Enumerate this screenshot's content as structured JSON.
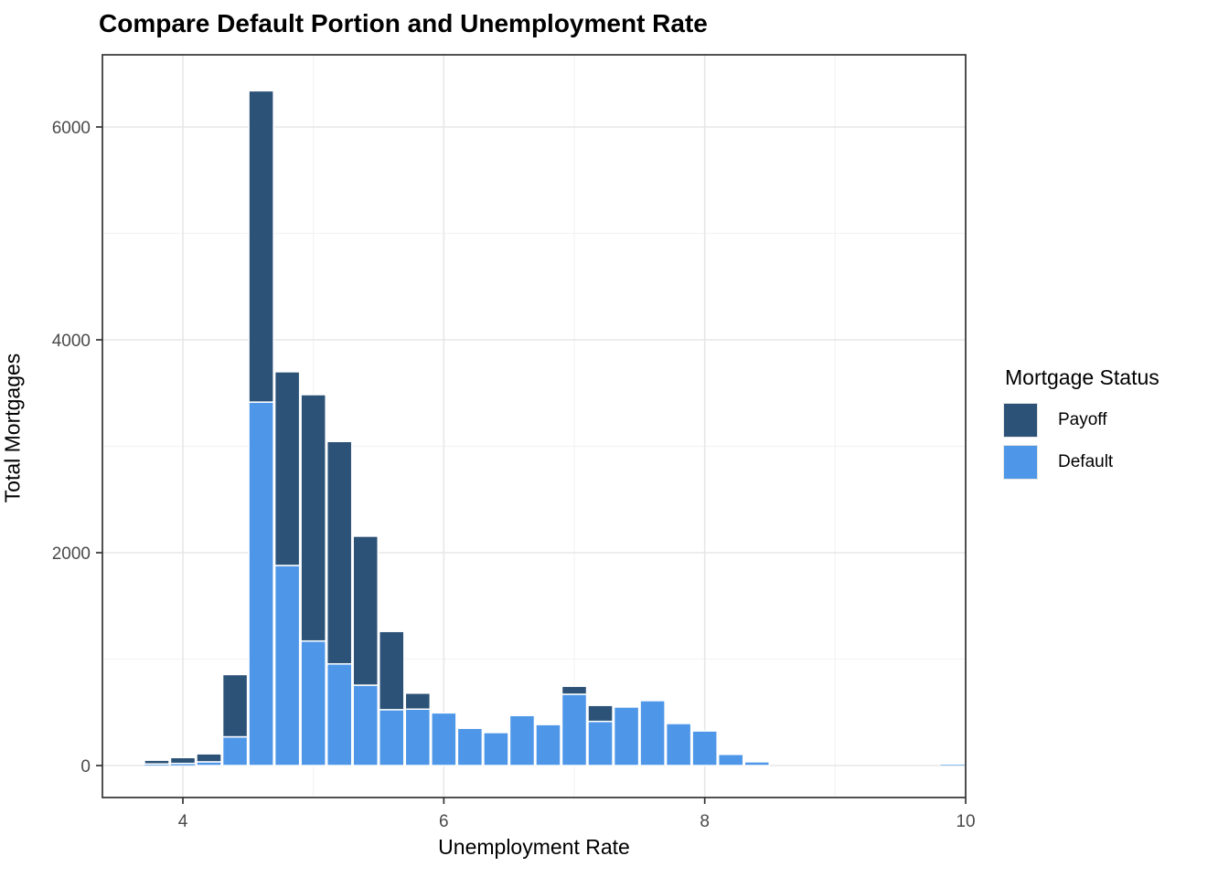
{
  "page": {
    "title": "Compare Default Portion and Unemployment Rate"
  },
  "chart_data": {
    "type": "bar",
    "subtype": "stacked-histogram",
    "title": "Compare Default Portion and Unemployment Rate",
    "xlabel": "Unemployment Rate",
    "ylabel": "Total Mortgages",
    "legend": {
      "title": "Mortgage Status",
      "position": "right"
    },
    "grid": "on",
    "bin_width": 0.2,
    "xlim": [
      3.38,
      10.0
    ],
    "ylim": [
      0,
      6680
    ],
    "x_ticks": [
      4,
      6,
      8,
      10
    ],
    "x_tick_labels": [
      "4",
      "6",
      "8",
      "10"
    ],
    "x_minor_ticks": [
      5,
      7,
      9
    ],
    "y_ticks": [
      0,
      2000,
      4000,
      6000
    ],
    "y_tick_labels": [
      "0",
      "2000",
      "4000",
      "6000"
    ],
    "y_minor_ticks": [
      1000,
      3000,
      5000
    ],
    "categories": [
      3.8,
      4.0,
      4.2,
      4.4,
      4.6,
      4.8,
      5.0,
      5.2,
      5.4,
      5.6,
      5.8,
      6.0,
      6.2,
      6.4,
      6.6,
      6.8,
      7.0,
      7.2,
      7.4,
      7.6,
      7.8,
      8.0,
      8.2,
      8.4,
      9.9
    ],
    "series": [
      {
        "name": "Payoff",
        "color": "#2c5277",
        "values": [
          35,
          55,
          75,
          585,
          2925,
          1820,
          2315,
          2090,
          1400,
          735,
          150,
          0,
          0,
          0,
          0,
          0,
          75,
          150,
          0,
          0,
          0,
          0,
          0,
          0,
          0
        ]
      },
      {
        "name": "Default",
        "color": "#4e97e8",
        "values": [
          15,
          20,
          35,
          270,
          3415,
          1880,
          1170,
          955,
          755,
          525,
          530,
          495,
          350,
          310,
          470,
          385,
          670,
          415,
          550,
          610,
          395,
          325,
          105,
          35,
          10
        ]
      }
    ],
    "colors": {
      "panel_border": "#333333",
      "grid_major": "#e7e7e7",
      "grid_minor": "#f3f3f3",
      "tick_label": "#4a4a4a",
      "bar_stroke": "#ffffff"
    }
  }
}
